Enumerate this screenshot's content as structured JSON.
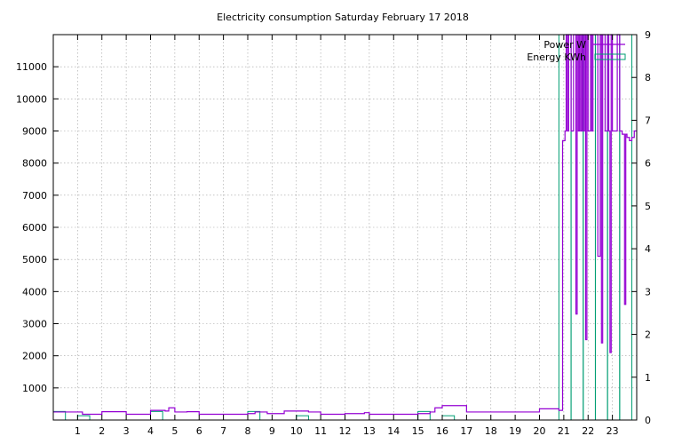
{
  "chart_data": {
    "type": "line",
    "title": "Electricity consumption Saturday February 17 2018",
    "xlim": [
      0,
      24
    ],
    "ylim": [
      0,
      12000
    ],
    "y2lim": [
      0,
      9
    ],
    "x_ticks": [
      1,
      2,
      3,
      4,
      5,
      6,
      7,
      8,
      9,
      10,
      11,
      12,
      13,
      14,
      15,
      16,
      17,
      18,
      19,
      20,
      21,
      22,
      23
    ],
    "y_ticks": [
      1000,
      2000,
      3000,
      4000,
      5000,
      6000,
      7000,
      8000,
      9000,
      10000,
      11000
    ],
    "y2_ticks": [
      0,
      1,
      2,
      3,
      4,
      5,
      6,
      7,
      8,
      9
    ],
    "grid": true,
    "legend_position": "top-right",
    "colors": {
      "power": "#9400d3",
      "energy": "#009e73"
    },
    "series": [
      {
        "name": "Power W",
        "axis": "y",
        "style": "steps",
        "x": [
          0,
          1.2,
          2.0,
          3.0,
          4.0,
          4.6,
          4.75,
          5.0,
          5.5,
          6.0,
          7.0,
          8.0,
          8.3,
          8.8,
          9.5,
          10.5,
          11.0,
          12.0,
          12.8,
          13.0,
          14.0,
          15.0,
          15.5,
          15.7,
          16.0,
          17.0,
          18.0,
          19.0,
          20.0,
          20.8,
          20.95,
          21.05,
          21.1,
          21.15,
          21.2,
          21.25,
          21.3,
          21.4,
          21.5,
          21.55,
          21.6,
          21.65,
          21.7,
          21.75,
          21.8,
          21.85,
          21.9,
          21.95,
          22.0,
          22.1,
          22.15,
          22.2,
          22.3,
          22.4,
          22.5,
          22.55,
          22.6,
          22.7,
          22.8,
          22.85,
          22.9,
          22.95,
          23.0,
          23.1,
          23.2,
          23.3,
          23.4,
          23.5,
          23.55,
          23.6,
          23.7,
          23.8,
          23.9
        ],
        "y": [
          250,
          180,
          260,
          180,
          300,
          280,
          380,
          250,
          260,
          180,
          180,
          200,
          250,
          200,
          280,
          250,
          180,
          200,
          230,
          180,
          180,
          200,
          250,
          380,
          450,
          250,
          250,
          250,
          350,
          300,
          8700,
          9000,
          12000,
          9000,
          12000,
          12000,
          9000,
          12000,
          3300,
          12000,
          9000,
          12000,
          9000,
          12000,
          9000,
          12000,
          2500,
          12000,
          9000,
          12000,
          9000,
          12000,
          12000,
          5100,
          12000,
          2400,
          12000,
          9000,
          12000,
          9000,
          2100,
          12000,
          9000,
          9000,
          12000,
          9000,
          8900,
          3600,
          8900,
          8800,
          8700,
          8800,
          9000
        ]
      },
      {
        "name": "Energy KWh",
        "axis": "y2",
        "style": "fsteps",
        "x": [
          0,
          1,
          1.5,
          2,
          3,
          4,
          4.5,
          5,
          6,
          7,
          8,
          8.5,
          9,
          10,
          10.5,
          11,
          12,
          13,
          14,
          15,
          15.5,
          16,
          16.5,
          17,
          18,
          19,
          20,
          20.8,
          21.3,
          21.8,
          22.3,
          22.8,
          23.3
        ],
        "y": [
          0.2,
          0.1,
          0,
          0,
          0,
          0.2,
          0,
          0,
          0,
          0,
          0.2,
          0,
          0,
          0.1,
          0,
          0,
          0,
          0,
          0,
          0.2,
          0,
          0.1,
          0,
          0,
          0,
          0,
          0,
          9,
          9,
          9,
          9,
          9,
          9
        ]
      }
    ]
  }
}
